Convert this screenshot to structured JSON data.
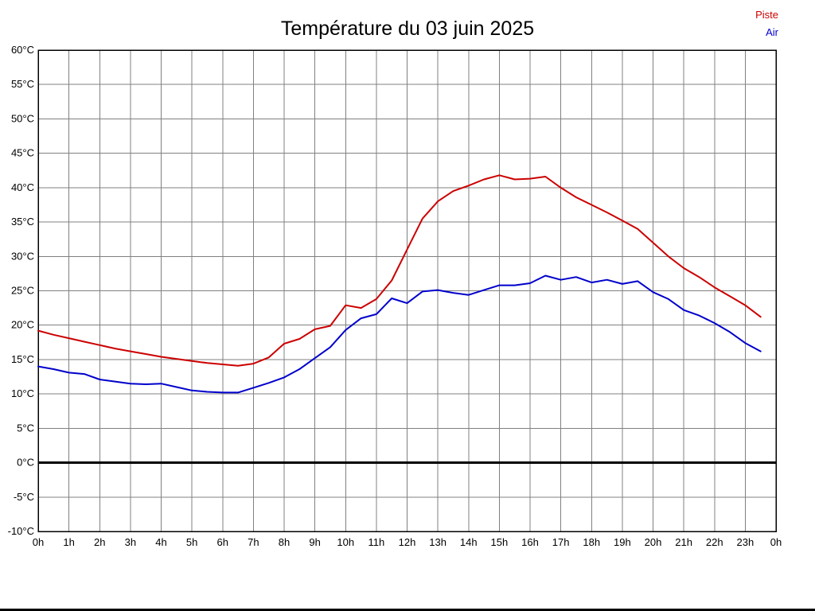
{
  "page": {
    "title": "Température du 03 juin 2025"
  },
  "legend": [
    {
      "label": "Piste",
      "color": "#cc0000"
    },
    {
      "label": "Air",
      "color": "#0000cc"
    }
  ],
  "chart_data": {
    "type": "line",
    "title": "Température du 03 juin 2025",
    "xlabel": "",
    "ylabel": "",
    "xlim": [
      0,
      24
    ],
    "ylim": [
      -10,
      60
    ],
    "y_tick_step": 5,
    "grid": true,
    "grid_color": "#808080",
    "zero_line_color": "#000000",
    "legend_position": "top-right",
    "x_tick_labels": [
      "0h",
      "1h",
      "2h",
      "3h",
      "4h",
      "5h",
      "6h",
      "7h",
      "8h",
      "9h",
      "10h",
      "11h",
      "12h",
      "13h",
      "14h",
      "15h",
      "16h",
      "17h",
      "18h",
      "19h",
      "20h",
      "21h",
      "22h",
      "23h",
      "0h"
    ],
    "y_tick_labels": [
      "60°C",
      "55°C",
      "50°C",
      "45°C",
      "40°C",
      "35°C",
      "30°C",
      "25°C",
      "20°C",
      "15°C",
      "10°C",
      "5°C",
      "0°C",
      "-5°C",
      "-10°C"
    ],
    "x": [
      0,
      0.5,
      1,
      1.5,
      2,
      2.5,
      3,
      3.5,
      4,
      4.5,
      5,
      5.5,
      6,
      6.5,
      7,
      7.5,
      8,
      8.5,
      9,
      9.5,
      10,
      10.5,
      11,
      11.5,
      12,
      12.5,
      13,
      13.5,
      14,
      14.5,
      15,
      15.5,
      16,
      16.5,
      17,
      17.5,
      18,
      18.5,
      19,
      19.5,
      20,
      20.5,
      21,
      21.5,
      22,
      22.5,
      23,
      23.5
    ],
    "series": [
      {
        "name": "Piste",
        "color": "#cc0000",
        "values": [
          19.2,
          18.6,
          18.1,
          17.6,
          17.1,
          16.6,
          16.2,
          15.8,
          15.4,
          15.1,
          14.8,
          14.5,
          14.3,
          14.1,
          14.4,
          15.3,
          17.3,
          18.0,
          19.4,
          19.9,
          22.9,
          22.5,
          23.8,
          26.5,
          31.0,
          35.5,
          38.0,
          39.5,
          40.3,
          41.2,
          41.8,
          41.2,
          41.3,
          41.6,
          40.0,
          38.6,
          37.5,
          36.4,
          35.2,
          34.0,
          32.0,
          30.0,
          28.3,
          27.0,
          25.5,
          24.2,
          22.9,
          21.2
        ]
      },
      {
        "name": "Air",
        "color": "#0000cc",
        "values": [
          14.0,
          13.6,
          13.1,
          12.9,
          12.1,
          11.8,
          11.5,
          11.4,
          11.5,
          11.0,
          10.5,
          10.3,
          10.2,
          10.2,
          10.9,
          11.6,
          12.4,
          13.6,
          15.2,
          16.8,
          19.3,
          21.0,
          21.6,
          23.9,
          23.2,
          24.9,
          25.1,
          24.7,
          24.4,
          25.1,
          25.8,
          25.8,
          26.1,
          27.2,
          26.6,
          27.0,
          26.2,
          26.6,
          26.0,
          26.4,
          24.8,
          23.8,
          22.2,
          21.4,
          20.3,
          19.0,
          17.4,
          16.2
        ]
      }
    ]
  }
}
